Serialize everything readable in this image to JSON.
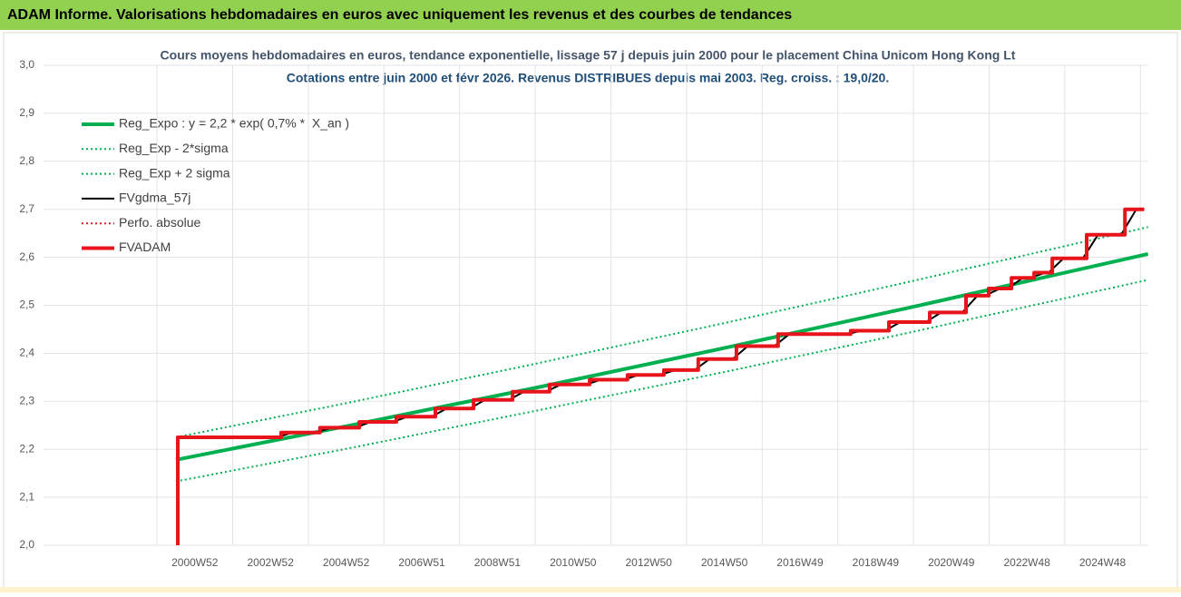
{
  "header": {
    "title": "ADAM Informe. Valorisations hebdomadaires en euros avec uniquement les revenus et des courbes de tendances"
  },
  "chart_data": {
    "type": "line",
    "title": "Cours moyens hebdomadaires en euros, tendance exponentielle, lissage 57 j depuis juin 2000 pour le placement China Unicom Hong Kong Lt",
    "subtitle": "Cotations entre juin 2000 et févr 2026. Revenus DISTRIBUES depuis mai 2003. Reg. croiss. : 19,0/20.",
    "xlim": [
      1997,
      2026.2
    ],
    "xticks": [
      {
        "value": 2001,
        "label": "2000W52"
      },
      {
        "value": 2003,
        "label": "2002W52"
      },
      {
        "value": 2005,
        "label": "2004W52"
      },
      {
        "value": 2007,
        "label": "2006W51"
      },
      {
        "value": 2009,
        "label": "2008W51"
      },
      {
        "value": 2011,
        "label": "2010W50"
      },
      {
        "value": 2013,
        "label": "2012W50"
      },
      {
        "value": 2015,
        "label": "2014W50"
      },
      {
        "value": 2017,
        "label": "2016W49"
      },
      {
        "value": 2019,
        "label": "2018W49"
      },
      {
        "value": 2021,
        "label": "2020W49"
      },
      {
        "value": 2023,
        "label": "2022W48"
      },
      {
        "value": 2025,
        "label": "2024W48"
      }
    ],
    "ylim": [
      2.0,
      3.0
    ],
    "yticks": [
      {
        "value": 2.0,
        "label": "2,0"
      },
      {
        "value": 2.1,
        "label": "2,1"
      },
      {
        "value": 2.2,
        "label": "2,2"
      },
      {
        "value": 2.3,
        "label": "2,3"
      },
      {
        "value": 2.4,
        "label": "2,4"
      },
      {
        "value": 2.5,
        "label": "2,5"
      },
      {
        "value": 2.6,
        "label": "2,6"
      },
      {
        "value": 2.7,
        "label": "2,7"
      },
      {
        "value": 2.8,
        "label": "2,8"
      },
      {
        "value": 2.9,
        "label": "2,9"
      },
      {
        "value": 3.0,
        "label": "3,0"
      }
    ],
    "grid": true,
    "legend": "top-left",
    "series": [
      {
        "name": "Reg_Expo : y = 2,2 * exp( 0,7% *  X_an )",
        "color": "#00b050",
        "style": "thick",
        "x": [
          2000.5,
          2005,
          2010,
          2015,
          2020,
          2026.2
        ],
        "values": [
          2.178,
          2.248,
          2.328,
          2.411,
          2.497,
          2.607
        ]
      },
      {
        "name": "Reg_Exp - 2*sigma",
        "color": "#00b050",
        "style": "dotted",
        "x": [
          2000.5,
          2005,
          2010,
          2015,
          2020,
          2026.2
        ],
        "values": [
          2.133,
          2.201,
          2.28,
          2.361,
          2.445,
          2.553
        ]
      },
      {
        "name": "Reg_Exp + 2 sigma",
        "color": "#00b050",
        "style": "dotted",
        "x": [
          2000.5,
          2005,
          2010,
          2015,
          2020,
          2026.2
        ],
        "values": [
          2.225,
          2.296,
          2.378,
          2.463,
          2.551,
          2.663
        ]
      },
      {
        "name": "FVgdma_57j",
        "color": "#000000",
        "style": "thin",
        "x": [
          2000.55,
          2003.18,
          2003.58,
          2004.21,
          2004.61,
          2005.25,
          2005.65,
          2006.23,
          2006.63,
          2007.26,
          2007.66,
          2008.27,
          2008.67,
          2009.3,
          2009.7,
          2010.28,
          2010.68,
          2011.34,
          2011.74,
          2012.34,
          2012.74,
          2013.3,
          2013.7,
          2014.21,
          2014.61,
          2015.22,
          2015.62,
          2016.32,
          2016.72,
          2018.24,
          2018.64,
          2019.25,
          2019.65,
          2020.33,
          2020.73,
          2021.29,
          2021.69,
          2021.89,
          2022.29,
          2022.49,
          2022.89,
          2023.09,
          2023.49,
          2023.57,
          2023.97,
          2024.48,
          2024.88,
          2025.49,
          2025.89,
          2026.1
        ],
        "values": [
          2.225,
          2.225,
          2.235,
          2.235,
          2.245,
          2.245,
          2.257,
          2.257,
          2.268,
          2.268,
          2.285,
          2.285,
          2.303,
          2.303,
          2.32,
          2.32,
          2.335,
          2.335,
          2.345,
          2.345,
          2.355,
          2.355,
          2.365,
          2.365,
          2.388,
          2.388,
          2.415,
          2.415,
          2.44,
          2.44,
          2.447,
          2.447,
          2.465,
          2.465,
          2.485,
          2.485,
          2.52,
          2.52,
          2.535,
          2.535,
          2.557,
          2.557,
          2.568,
          2.568,
          2.598,
          2.598,
          2.647,
          2.647,
          2.7,
          2.7
        ]
      },
      {
        "name": "Perfo. absolue",
        "color": "#e02020",
        "style": "dotted",
        "x": [
          2000.55,
          2003.28,
          2003.28,
          2004.31,
          2004.31,
          2005.35,
          2005.35,
          2006.33,
          2006.33,
          2007.36,
          2007.36,
          2008.37,
          2008.37,
          2009.4,
          2009.4,
          2010.38,
          2010.38,
          2011.44,
          2011.44,
          2012.44,
          2012.44,
          2013.4,
          2013.4,
          2014.31,
          2014.31,
          2015.32,
          2015.32,
          2016.42,
          2016.42,
          2018.34,
          2018.34,
          2019.35,
          2019.35,
          2020.43,
          2020.43,
          2021.39,
          2021.39,
          2021.99,
          2021.99,
          2022.59,
          2022.59,
          2023.19,
          2023.19,
          2023.67,
          2023.67,
          2024.58,
          2024.58,
          2025.59,
          2025.59,
          2026.1
        ],
        "values": [
          2.225,
          2.225,
          2.235,
          2.235,
          2.245,
          2.245,
          2.257,
          2.257,
          2.268,
          2.268,
          2.285,
          2.285,
          2.303,
          2.303,
          2.32,
          2.32,
          2.335,
          2.335,
          2.345,
          2.345,
          2.355,
          2.355,
          2.365,
          2.365,
          2.388,
          2.388,
          2.415,
          2.415,
          2.44,
          2.44,
          2.447,
          2.447,
          2.465,
          2.465,
          2.485,
          2.485,
          2.52,
          2.52,
          2.535,
          2.535,
          2.557,
          2.557,
          2.568,
          2.568,
          2.598,
          2.598,
          2.647,
          2.647,
          2.7,
          2.7
        ]
      },
      {
        "name": "FVADAM",
        "color": "#e8141b",
        "style": "thick",
        "x": [
          2000.55,
          2000.55,
          2003.28,
          2003.28,
          2004.31,
          2004.31,
          2005.35,
          2005.35,
          2006.33,
          2006.33,
          2007.36,
          2007.36,
          2008.37,
          2008.37,
          2009.4,
          2009.4,
          2010.38,
          2010.38,
          2011.44,
          2011.44,
          2012.44,
          2012.44,
          2013.4,
          2013.4,
          2014.31,
          2014.31,
          2015.32,
          2015.32,
          2016.42,
          2016.42,
          2018.34,
          2018.34,
          2019.35,
          2019.35,
          2020.43,
          2020.43,
          2021.39,
          2021.39,
          2021.99,
          2021.99,
          2022.59,
          2022.59,
          2023.19,
          2023.19,
          2023.67,
          2023.67,
          2024.58,
          2024.58,
          2025.59,
          2025.59,
          2026.1
        ],
        "values": [
          2.0,
          2.225,
          2.225,
          2.235,
          2.235,
          2.245,
          2.245,
          2.257,
          2.257,
          2.268,
          2.268,
          2.285,
          2.285,
          2.303,
          2.303,
          2.32,
          2.32,
          2.335,
          2.335,
          2.345,
          2.345,
          2.355,
          2.355,
          2.365,
          2.365,
          2.388,
          2.388,
          2.415,
          2.415,
          2.44,
          2.44,
          2.447,
          2.447,
          2.465,
          2.465,
          2.485,
          2.485,
          2.52,
          2.52,
          2.535,
          2.535,
          2.557,
          2.557,
          2.568,
          2.568,
          2.598,
          2.598,
          2.647,
          2.647,
          2.7,
          2.7
        ]
      }
    ]
  }
}
